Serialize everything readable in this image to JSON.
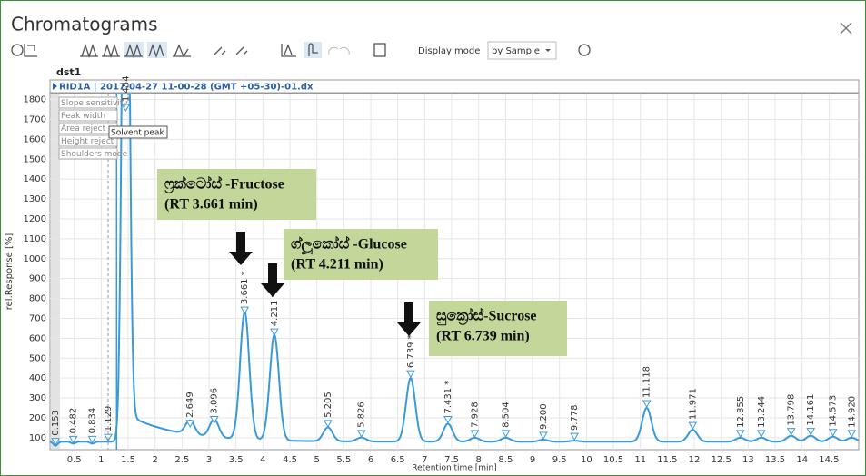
{
  "window": {
    "title": "Chromatograms"
  },
  "toolbar": {
    "display_mode_label": "Display mode",
    "display_mode_value": "by Sample"
  },
  "dataset": "dst1",
  "trace_header": "RID1A | 2017-04-27 11-00-28 (GMT +05-30)-01.dx",
  "integration_labels": [
    "Slope sensitivity",
    "Peak width",
    "Area reject",
    "Height reject",
    "Shoulders mode"
  ],
  "solvent_label": "Solvent peak",
  "annotations": [
    {
      "lines": [
        "ෆ්‍රක්ටෝස් -Fructose",
        "(RT 3.661 min)"
      ]
    },
    {
      "lines": [
        "ග්ලූකෝස් -Glucose",
        "(RT 4.211 min)"
      ]
    },
    {
      "lines": [
        "සුක්‍රෝස්-Sucrose",
        "(RT 6.739 min)"
      ]
    }
  ],
  "chart_data": {
    "type": "chromatogram",
    "y_label": "rel.Response [%]",
    "x_label": "Retention time [min]",
    "xlim": [
      0.05,
      15.05
    ],
    "ylim": [
      40,
      1830
    ],
    "xticks": [
      0.5,
      1,
      1.5,
      2,
      2.5,
      3,
      3.5,
      4,
      4.5,
      5,
      5.5,
      6,
      6.5,
      7,
      7.5,
      8,
      8.5,
      9,
      9.5,
      10,
      10.5,
      11,
      11.5,
      12,
      12.5,
      13,
      13.5,
      14,
      14.5
    ],
    "yticks": [
      100,
      200,
      300,
      400,
      500,
      600,
      700,
      800,
      900,
      1000,
      1100,
      1200,
      1300,
      1400,
      1500,
      1600,
      1700,
      1800
    ],
    "grid": true,
    "color": "#3a9ad9",
    "baseline": 80,
    "peaks": [
      {
        "rt": 0.153,
        "label": "0.153",
        "height": 60
      },
      {
        "rt": 0.482,
        "label": "0.482",
        "height": 70
      },
      {
        "rt": 0.834,
        "label": "0.834",
        "height": 70
      },
      {
        "rt": 1.129,
        "label": "1.129",
        "height": 80
      },
      {
        "rt": 1.454,
        "label": "1.454",
        "height": 4000
      },
      {
        "rt": 2.649,
        "label": "2.649",
        "height": 150
      },
      {
        "rt": 3.096,
        "label": "3.096",
        "height": 170
      },
      {
        "rt": 3.661,
        "label": "3.661 *",
        "height": 720
      },
      {
        "rt": 4.211,
        "label": "4.211 *",
        "height": 610
      },
      {
        "rt": 5.205,
        "label": "5.205",
        "height": 150
      },
      {
        "rt": 5.826,
        "label": "5.826",
        "height": 100
      },
      {
        "rt": 6.739,
        "label": "6.739 *",
        "height": 400
      },
      {
        "rt": 7.431,
        "label": "7.431 *",
        "height": 170
      },
      {
        "rt": 7.928,
        "label": "7.928",
        "height": 100
      },
      {
        "rt": 8.504,
        "label": "8.504",
        "height": 100
      },
      {
        "rt": 9.2,
        "label": "9.200",
        "height": 90
      },
      {
        "rt": 9.778,
        "label": "9.778",
        "height": 85
      },
      {
        "rt": 11.118,
        "label": "11.118",
        "height": 250
      },
      {
        "rt": 11.971,
        "label": "11.971",
        "height": 140
      },
      {
        "rt": 12.855,
        "label": "12.855",
        "height": 100
      },
      {
        "rt": 13.244,
        "label": "13.244",
        "height": 100
      },
      {
        "rt": 13.798,
        "label": "13.798",
        "height": 110
      },
      {
        "rt": 14.161,
        "label": "14.161",
        "height": 110
      },
      {
        "rt": 14.573,
        "label": "14.573",
        "height": 105
      },
      {
        "rt": 14.92,
        "label": "14.920",
        "height": 100
      }
    ]
  }
}
